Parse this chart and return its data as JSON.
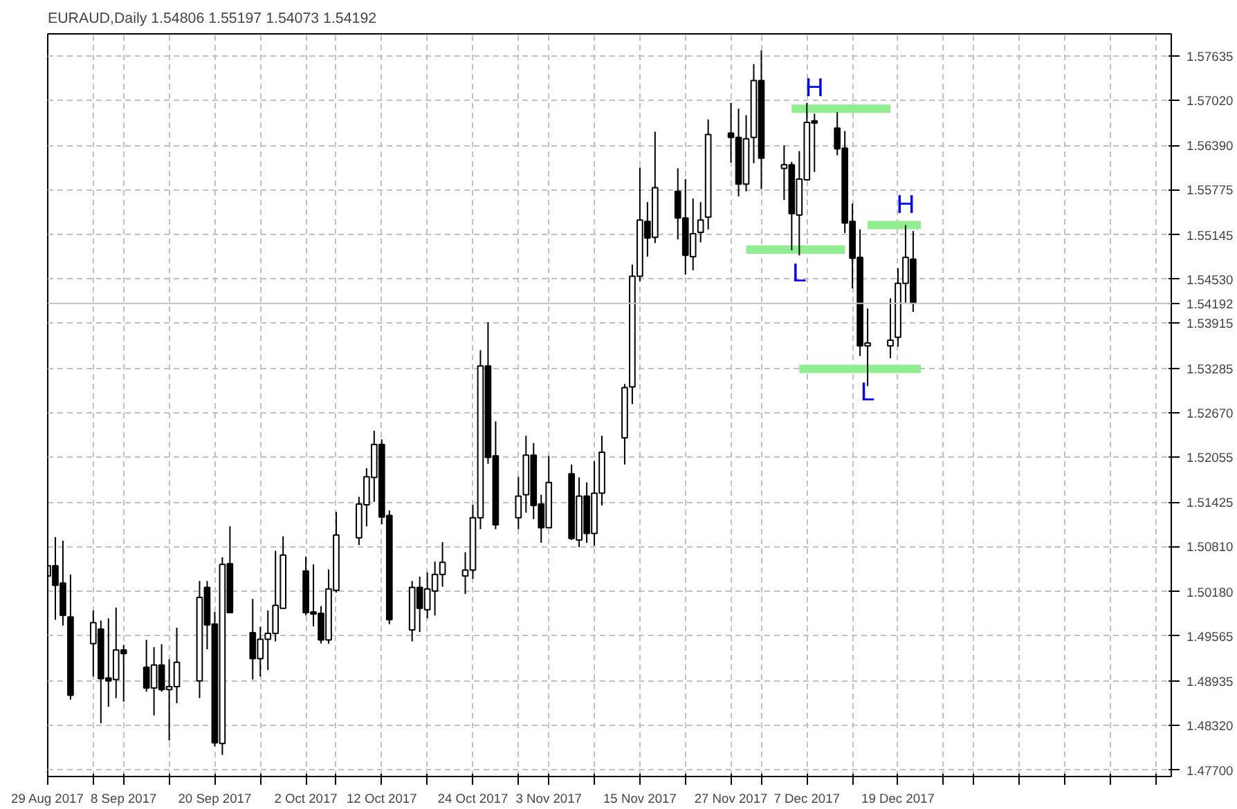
{
  "chart_data": {
    "type": "candlestick",
    "title": "EURAUD,Daily 1.54806 1.55197 1.54073 1.54192",
    "x": [
      "2017-08-29",
      "2017-08-30",
      "2017-08-31",
      "2017-09-01",
      "2017-09-04",
      "2017-09-05",
      "2017-09-06",
      "2017-09-07",
      "2017-09-08",
      "2017-09-11",
      "2017-09-12",
      "2017-09-13",
      "2017-09-14",
      "2017-09-15",
      "2017-09-18",
      "2017-09-19",
      "2017-09-20",
      "2017-09-21",
      "2017-09-22",
      "2017-09-25",
      "2017-09-26",
      "2017-09-27",
      "2017-09-28",
      "2017-09-29",
      "2017-10-02",
      "2017-10-03",
      "2017-10-04",
      "2017-10-05",
      "2017-10-06",
      "2017-10-09",
      "2017-10-10",
      "2017-10-11",
      "2017-10-12",
      "2017-10-13",
      "2017-10-16",
      "2017-10-17",
      "2017-10-18",
      "2017-10-19",
      "2017-10-20",
      "2017-10-23",
      "2017-10-24",
      "2017-10-25",
      "2017-10-26",
      "2017-10-27",
      "2017-10-30",
      "2017-10-31",
      "2017-11-01",
      "2017-11-02",
      "2017-11-03",
      "2017-11-06",
      "2017-11-07",
      "2017-11-08",
      "2017-11-09",
      "2017-11-10",
      "2017-11-13",
      "2017-11-14",
      "2017-11-15",
      "2017-11-16",
      "2017-11-17",
      "2017-11-20",
      "2017-11-21",
      "2017-11-22",
      "2017-11-23",
      "2017-11-24",
      "2017-11-27",
      "2017-11-28",
      "2017-11-29",
      "2017-11-30",
      "2017-12-01",
      "2017-12-04",
      "2017-12-05",
      "2017-12-06",
      "2017-12-07",
      "2017-12-08",
      "2017-12-11",
      "2017-12-12",
      "2017-12-13",
      "2017-12-14",
      "2017-12-15",
      "2017-12-18",
      "2017-12-19",
      "2017-12-20",
      "2017-12-21"
    ],
    "ohlc": [
      [
        1.504,
        1.5175,
        1.5018,
        1.5054
      ],
      [
        1.5054,
        1.5094,
        1.4979,
        1.5027
      ],
      [
        1.503,
        1.5089,
        1.4971,
        1.4985
      ],
      [
        1.4983,
        1.5042,
        1.4868,
        1.4874
      ],
      [
        1.4946,
        1.4992,
        1.49,
        1.4975
      ],
      [
        1.4966,
        1.4978,
        1.4835,
        1.4897
      ],
      [
        1.4898,
        1.4981,
        1.4858,
        1.4894
      ],
      [
        1.4896,
        1.4996,
        1.487,
        1.4937
      ],
      [
        1.4937,
        1.4944,
        1.4865,
        1.4932
      ],
      [
        1.4913,
        1.4951,
        1.4879,
        1.4884
      ],
      [
        1.4884,
        1.4941,
        1.4846,
        1.4916
      ],
      [
        1.4916,
        1.4945,
        1.4879,
        1.4882
      ],
      [
        1.4882,
        1.4924,
        1.4811,
        1.4886
      ],
      [
        1.4886,
        1.4968,
        1.4863,
        1.492
      ],
      [
        1.4894,
        1.5033,
        1.487,
        1.501
      ],
      [
        1.5024,
        1.5033,
        1.4938,
        1.4972
      ],
      [
        1.4973,
        1.499,
        1.4803,
        1.4808
      ],
      [
        1.4807,
        1.5066,
        1.4791,
        1.5056
      ],
      [
        1.5057,
        1.5109,
        1.4989,
        1.4989
      ],
      [
        1.4961,
        1.5008,
        1.4896,
        1.4925
      ],
      [
        1.4925,
        1.4969,
        1.49,
        1.4952
      ],
      [
        1.4952,
        1.4992,
        1.4909,
        1.496
      ],
      [
        1.496,
        1.5075,
        1.4949,
        1.4999
      ],
      [
        1.4995,
        1.5095,
        1.4995,
        1.5069
      ],
      [
        1.5047,
        1.5067,
        1.4985,
        1.4989
      ],
      [
        1.499,
        1.5056,
        1.497,
        1.4987
      ],
      [
        1.4988,
        1.4998,
        1.4946,
        1.4951
      ],
      [
        1.4951,
        1.5049,
        1.4946,
        1.5022
      ],
      [
        1.502,
        1.5129,
        1.5017,
        1.5097
      ],
      [
        1.5093,
        1.515,
        1.5083,
        1.514
      ],
      [
        1.5139,
        1.519,
        1.5109,
        1.5178
      ],
      [
        1.5177,
        1.5242,
        1.5143,
        1.5223
      ],
      [
        1.5223,
        1.523,
        1.5112,
        1.5122
      ],
      [
        1.5124,
        1.5131,
        1.4973,
        1.4979
      ],
      [
        1.4965,
        1.5033,
        1.4949,
        1.5024
      ],
      [
        1.5024,
        1.5039,
        1.4962,
        1.4995
      ],
      [
        1.4993,
        1.5045,
        1.4981,
        1.5022
      ],
      [
        1.5019,
        1.506,
        1.4985,
        1.5042
      ],
      [
        1.5042,
        1.5087,
        1.5025,
        1.5059
      ],
      [
        1.504,
        1.5073,
        1.5015,
        1.5048
      ],
      [
        1.5048,
        1.5139,
        1.5036,
        1.5121
      ],
      [
        1.5121,
        1.5354,
        1.5105,
        1.5332
      ],
      [
        1.5332,
        1.5393,
        1.5196,
        1.5205
      ],
      [
        1.5207,
        1.5255,
        1.5105,
        1.5111
      ],
      [
        1.5121,
        1.5178,
        1.5105,
        1.5151
      ],
      [
        1.5153,
        1.5235,
        1.5128,
        1.5208
      ],
      [
        1.5208,
        1.5225,
        1.5119,
        1.5138
      ],
      [
        1.514,
        1.5153,
        1.5086,
        1.5107
      ],
      [
        1.5107,
        1.5207,
        1.5107,
        1.517
      ],
      [
        1.5182,
        1.5195,
        1.509,
        1.5092
      ],
      [
        1.509,
        1.5177,
        1.508,
        1.5151
      ],
      [
        1.5151,
        1.517,
        1.5086,
        1.5099
      ],
      [
        1.5099,
        1.52,
        1.5082,
        1.5155
      ],
      [
        1.5155,
        1.5235,
        1.5138,
        1.5212
      ],
      [
        1.5232,
        1.5307,
        1.5195,
        1.5302
      ],
      [
        1.5303,
        1.5473,
        1.5279,
        1.5457
      ],
      [
        1.5457,
        1.5608,
        1.545,
        1.5535
      ],
      [
        1.5533,
        1.556,
        1.5484,
        1.551
      ],
      [
        1.5511,
        1.5658,
        1.5503,
        1.558
      ],
      [
        1.5575,
        1.5607,
        1.5508,
        1.5538
      ],
      [
        1.5538,
        1.5592,
        1.5459,
        1.5486
      ],
      [
        1.5484,
        1.5565,
        1.5465,
        1.5516
      ],
      [
        1.5518,
        1.556,
        1.5504,
        1.5535
      ],
      [
        1.5539,
        1.5675,
        1.5522,
        1.5654
      ],
      [
        1.5656,
        1.5698,
        1.5615,
        1.565
      ],
      [
        1.565,
        1.569,
        1.5568,
        1.5585
      ],
      [
        1.5585,
        1.5681,
        1.5575,
        1.5648
      ],
      [
        1.565,
        1.5752,
        1.5614,
        1.5729
      ],
      [
        1.5729,
        1.5771,
        1.5578,
        1.5621
      ],
      [
        1.5607,
        1.5639,
        1.5563,
        1.5612
      ],
      [
        1.5612,
        1.5616,
        1.5493,
        1.5544
      ],
      [
        1.5542,
        1.5631,
        1.5486,
        1.5592
      ],
      [
        1.5591,
        1.5698,
        1.5591,
        1.5671
      ],
      [
        1.5673,
        1.5683,
        1.5602,
        1.567
      ],
      [
        1.5663,
        1.5685,
        1.5625,
        1.5634
      ],
      [
        1.5635,
        1.5659,
        1.5517,
        1.5531
      ],
      [
        1.5533,
        1.5558,
        1.544,
        1.5482
      ],
      [
        1.5483,
        1.5522,
        1.5346,
        1.536
      ],
      [
        1.536,
        1.5412,
        1.5304,
        1.5364
      ],
      [
        1.536,
        1.5426,
        1.5343,
        1.5368
      ],
      [
        1.5372,
        1.5468,
        1.5359,
        1.5447
      ],
      [
        1.5447,
        1.5528,
        1.542,
        1.5483
      ],
      [
        1.54806,
        1.55197,
        1.54073,
        1.54192
      ]
    ],
    "series": [
      {
        "type": "line",
        "color": "#90ee90",
        "x": [
          "2017-12-05",
          "2017-12-18"
        ],
        "values": [
          1.569,
          1.569
        ]
      },
      {
        "type": "line",
        "color": "#90ee90",
        "x": [
          "2017-11-29",
          "2017-12-12"
        ],
        "values": [
          1.5494,
          1.5494
        ]
      },
      {
        "type": "line",
        "color": "#90ee90",
        "x": [
          "2017-12-15",
          "2017-12-22"
        ],
        "values": [
          1.5528,
          1.5528
        ]
      },
      {
        "type": "line",
        "color": "#90ee90",
        "x": [
          "2017-12-06",
          "2017-12-22"
        ],
        "values": [
          1.5328,
          1.5328
        ]
      }
    ],
    "annotations": [
      {
        "text": "H",
        "x": "2017-12-08",
        "y": 1.569
      },
      {
        "text": "H",
        "x": "2017-12-20",
        "y": 1.5528
      },
      {
        "text": "L",
        "x": "2017-12-06",
        "y": 1.5494
      },
      {
        "text": "L",
        "x": "2017-12-15",
        "y": 1.5328
      }
    ],
    "ref_lines": [
      {
        "axis": "y",
        "value": 1.54192,
        "label": "1.54192",
        "color": "#c0c0c0"
      }
    ],
    "xlim": [
      "2017-08-29",
      "2018-01-24"
    ],
    "xticks": [
      {
        "value": "2017-08-29",
        "label": "29 Aug 2017"
      },
      {
        "value": "2017-09-04",
        "label": null
      },
      {
        "value": "2017-09-08",
        "label": "8 Sep 2017"
      },
      {
        "value": "2017-09-14",
        "label": null
      },
      {
        "value": "2017-09-20",
        "label": "20 Sep 2017"
      },
      {
        "value": "2017-09-26",
        "label": null
      },
      {
        "value": "2017-10-02",
        "label": "2 Oct 2017"
      },
      {
        "value": "2017-10-06",
        "label": null
      },
      {
        "value": "2017-10-12",
        "label": "12 Oct 2017"
      },
      {
        "value": "2017-10-18",
        "label": null
      },
      {
        "value": "2017-10-24",
        "label": "24 Oct 2017"
      },
      {
        "value": "2017-10-30",
        "label": null
      },
      {
        "value": "2017-11-03",
        "label": "3 Nov 2017"
      },
      {
        "value": "2017-11-09",
        "label": null
      },
      {
        "value": "2017-11-15",
        "label": "15 Nov 2017"
      },
      {
        "value": "2017-11-21",
        "label": null
      },
      {
        "value": "2017-11-27",
        "label": "27 Nov 2017"
      },
      {
        "value": "2017-12-01",
        "label": null
      },
      {
        "value": "2017-12-07",
        "label": "7 Dec 2017"
      },
      {
        "value": "2017-12-13",
        "label": null
      },
      {
        "value": "2017-12-19",
        "label": "19 Dec 2017"
      },
      {
        "value": "2017-12-25",
        "label": null
      },
      {
        "value": "2017-12-29",
        "label": null
      },
      {
        "value": "2018-01-04",
        "label": null
      },
      {
        "value": "2018-01-10",
        "label": null
      },
      {
        "value": "2018-01-16",
        "label": null
      },
      {
        "value": "2018-01-22",
        "label": null
      }
    ],
    "ylim": [
      1.4761,
      1.5794
    ],
    "yticks": [
      {
        "value": 1.57635,
        "label": "1.57635"
      },
      {
        "value": 1.5702,
        "label": "1.57020"
      },
      {
        "value": 1.5639,
        "label": "1.56390"
      },
      {
        "value": 1.55775,
        "label": "1.55775"
      },
      {
        "value": 1.55145,
        "label": "1.55145"
      },
      {
        "value": 1.5453,
        "label": "1.54530"
      },
      {
        "value": 1.53915,
        "label": "1.53915"
      },
      {
        "value": 1.53285,
        "label": "1.53285"
      },
      {
        "value": 1.5267,
        "label": "1.52670"
      },
      {
        "value": 1.52055,
        "label": "1.52055"
      },
      {
        "value": 1.51425,
        "label": "1.51425"
      },
      {
        "value": 1.5081,
        "label": "1.50810"
      },
      {
        "value": 1.5018,
        "label": "1.50180"
      },
      {
        "value": 1.49565,
        "label": "1.49565"
      },
      {
        "value": 1.48935,
        "label": "1.48935"
      },
      {
        "value": 1.4832,
        "label": "1.48320"
      },
      {
        "value": 1.477,
        "label": "1.47700"
      }
    ],
    "grid": true
  }
}
